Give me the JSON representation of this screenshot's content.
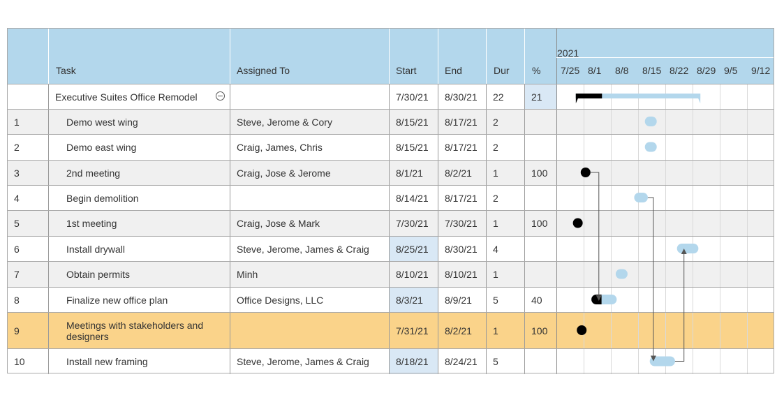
{
  "header": {
    "year": "2021",
    "columns": {
      "task": "Task",
      "assigned": "Assigned To",
      "start": "Start",
      "end": "End",
      "dur": "Dur",
      "pct": "%"
    },
    "weeks": [
      "7/25",
      "8/1",
      "8/8",
      "8/15",
      "8/22",
      "8/29",
      "9/5",
      "9/12"
    ]
  },
  "summary": {
    "task": "Executive Suites Office Remodel",
    "start": "7/30/21",
    "end": "8/30/21",
    "dur": "22",
    "pct": "21"
  },
  "rows": [
    {
      "num": "1",
      "task": "Demo west wing",
      "assigned": "Steve, Jerome & Cory",
      "start": "8/15/21",
      "end": "8/17/21",
      "dur": "2",
      "pct": ""
    },
    {
      "num": "2",
      "task": "Demo east wing",
      "assigned": "Craig, James, Chris",
      "start": "8/15/21",
      "end": "8/17/21",
      "dur": "2",
      "pct": ""
    },
    {
      "num": "3",
      "task": "2nd meeting",
      "assigned": "Craig, Jose & Jerome",
      "start": "8/1/21",
      "end": "8/2/21",
      "dur": "1",
      "pct": "100"
    },
    {
      "num": "4",
      "task": "Begin demolition",
      "assigned": "",
      "start": "8/14/21",
      "end": "8/17/21",
      "dur": "2",
      "pct": ""
    },
    {
      "num": "5",
      "task": "1st meeting",
      "assigned": "Craig, Jose & Mark",
      "start": "7/30/21",
      "end": "7/30/21",
      "dur": "1",
      "pct": "100"
    },
    {
      "num": "6",
      "task": "Install drywall",
      "assigned": "Steve, Jerome, James & Craig",
      "start": "8/25/21",
      "end": "8/30/21",
      "dur": "4",
      "pct": ""
    },
    {
      "num": "7",
      "task": "Obtain permits",
      "assigned": "Minh",
      "start": "8/10/21",
      "end": "8/10/21",
      "dur": "1",
      "pct": ""
    },
    {
      "num": "8",
      "task": "Finalize new office plan",
      "assigned": "Office Designs, LLC",
      "start": "8/3/21",
      "end": "8/9/21",
      "dur": "5",
      "pct": "40"
    },
    {
      "num": "9",
      "task": "Meetings with stakeholders and designers",
      "assigned": "",
      "start": "7/31/21",
      "end": "8/2/21",
      "dur": "1",
      "pct": "100"
    },
    {
      "num": "10",
      "task": "Install new framing",
      "assigned": "Steve, Jerome, James & Craig",
      "start": "8/18/21",
      "end": "8/24/21",
      "dur": "5",
      "pct": ""
    }
  ],
  "colors": {
    "header": "#b3d7ec",
    "bar": "#b3d7ec",
    "progress": "#000000",
    "highlight": "#fad38a",
    "selected": "#d9e8f5"
  },
  "chart_data": {
    "type": "gantt",
    "timeline_start": "2021-07-25",
    "week_ticks": [
      "7/25",
      "8/1",
      "8/8",
      "8/15",
      "8/22",
      "8/29",
      "9/5",
      "9/12"
    ],
    "summary": {
      "name": "Executive Suites Office Remodel",
      "start": "2021-07-30",
      "end": "2021-08-30",
      "percent": 21
    },
    "tasks": [
      {
        "id": 1,
        "name": "Demo west wing",
        "start": "2021-08-15",
        "end": "2021-08-17",
        "percent": 0,
        "milestone": true
      },
      {
        "id": 2,
        "name": "Demo east wing",
        "start": "2021-08-15",
        "end": "2021-08-17",
        "percent": 0,
        "milestone": true
      },
      {
        "id": 3,
        "name": "2nd meeting",
        "start": "2021-08-01",
        "end": "2021-08-02",
        "percent": 100,
        "milestone": true
      },
      {
        "id": 4,
        "name": "Begin demolition",
        "start": "2021-08-14",
        "end": "2021-08-17",
        "percent": 0
      },
      {
        "id": 5,
        "name": "1st meeting",
        "start": "2021-07-30",
        "end": "2021-07-30",
        "percent": 100,
        "milestone": true
      },
      {
        "id": 6,
        "name": "Install drywall",
        "start": "2021-08-25",
        "end": "2021-08-30",
        "percent": 0
      },
      {
        "id": 7,
        "name": "Obtain permits",
        "start": "2021-08-10",
        "end": "2021-08-10",
        "percent": 0,
        "milestone": true
      },
      {
        "id": 8,
        "name": "Finalize new office plan",
        "start": "2021-08-03",
        "end": "2021-08-09",
        "percent": 40
      },
      {
        "id": 9,
        "name": "Meetings with stakeholders and designers",
        "start": "2021-07-31",
        "end": "2021-08-02",
        "percent": 100,
        "milestone": true
      },
      {
        "id": 10,
        "name": "Install new framing",
        "start": "2021-08-18",
        "end": "2021-08-24",
        "percent": 0
      }
    ],
    "dependencies": [
      {
        "from": 3,
        "to": 8
      },
      {
        "from": 4,
        "to": 10
      },
      {
        "from": 10,
        "to": 6
      }
    ]
  }
}
